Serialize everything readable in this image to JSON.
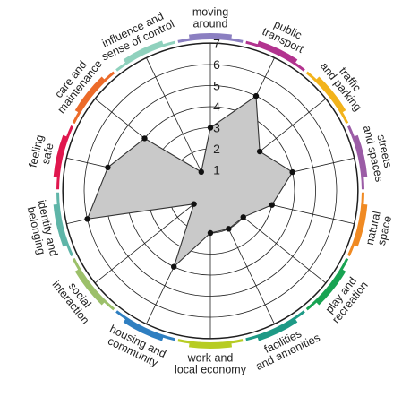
{
  "chart_data": {
    "type": "radar",
    "categories": [
      "moving around",
      "public transport",
      "traffic and parking",
      "streets and spaces",
      "natural space",
      "play and recreation",
      "facilities and amenities",
      "work and local economy",
      "housing and community",
      "social interaction",
      "identity and belonging",
      "feeling safe",
      "care and maintenance",
      "influence and sense of control"
    ],
    "category_colors": [
      "#8b7fc1",
      "#b2338f",
      "#f2b31b",
      "#9b5ca6",
      "#f08a23",
      "#18a352",
      "#1e9a86",
      "#b7cc24",
      "#2f7fc1",
      "#9cc06a",
      "#5fb5a8",
      "#e0174e",
      "#ec6b2a",
      "#8fd1bd"
    ],
    "values": [
      3,
      5,
      3,
      4,
      3,
      2,
      2,
      2,
      4,
      1,
      6,
      5,
      4,
      1
    ],
    "r_ticks": [
      "1",
      "2",
      "3",
      "4",
      "5",
      "6",
      "7"
    ],
    "r_range": [
      0,
      7
    ],
    "grid": true
  }
}
